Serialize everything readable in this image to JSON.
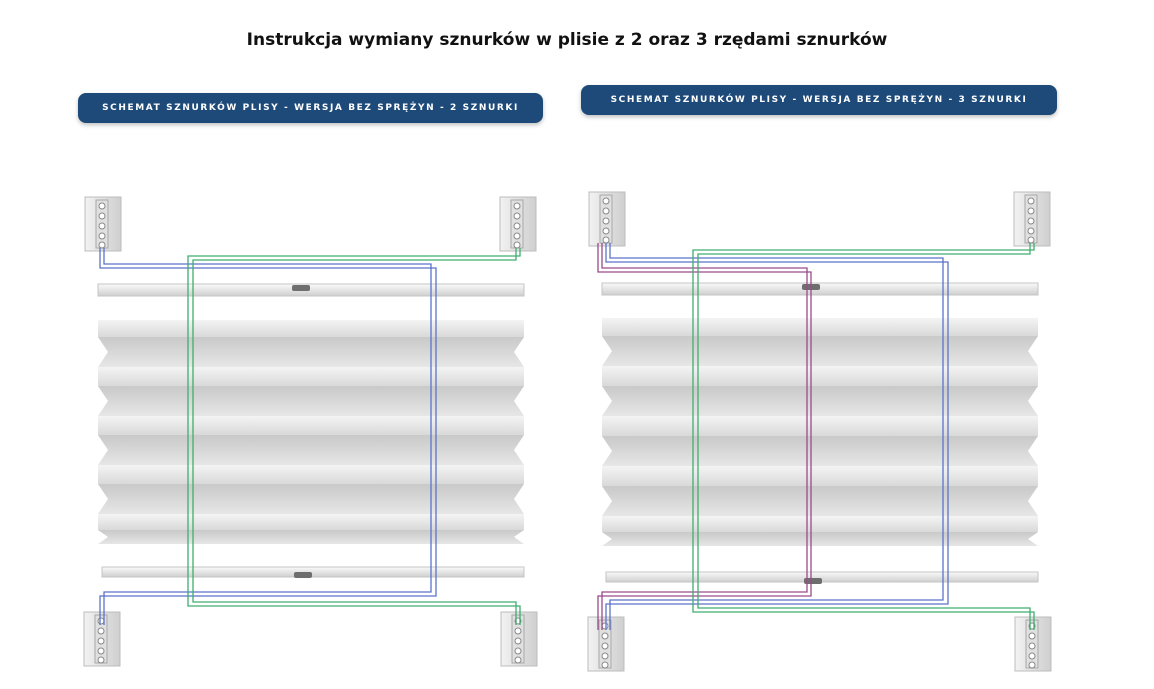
{
  "title": "Instrukcja wymiany sznurków w plisie z 2 oraz 3 rzędami sznurków",
  "diagrams": [
    {
      "banner": "schemat sznurków plisy - wersja bez sprężyn - 2 sznurki",
      "cord_count": 2
    },
    {
      "banner": "schemat sznurków plisy - wersja bez sprężyn - 3 sznurki",
      "cord_count": 3
    }
  ],
  "colors": {
    "banner_bg": "#1d4a78",
    "cord_blue": "#5b73c9",
    "cord_green": "#3fae6e",
    "cord_purple": "#9a4b8c",
    "fabric": "#e9e9e9"
  }
}
